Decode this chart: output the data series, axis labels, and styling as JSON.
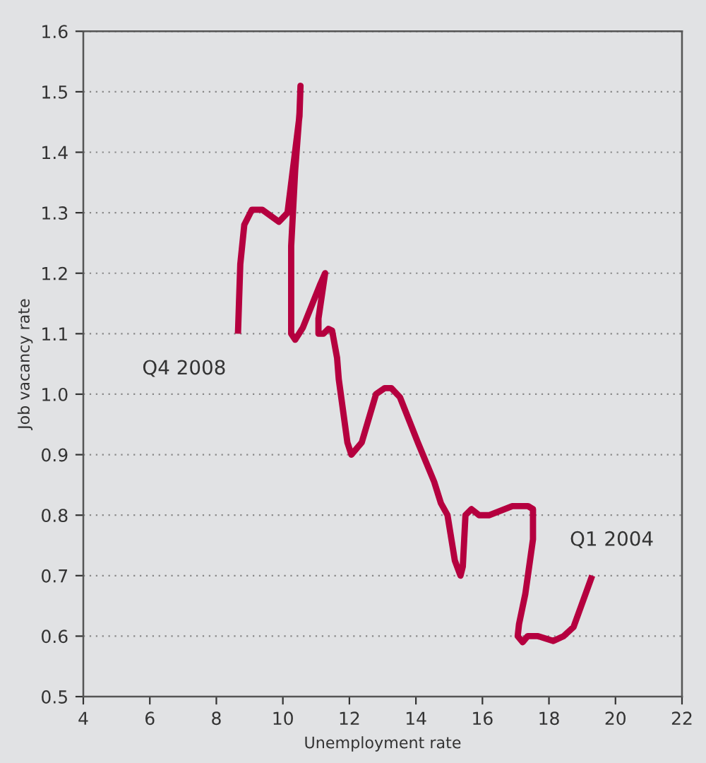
{
  "chart_data": {
    "type": "line",
    "xlabel": "Unemployment rate",
    "ylabel": "Job vacancy rate",
    "xlim": [
      4,
      22
    ],
    "xticks": [
      4,
      6,
      8,
      10,
      12,
      14,
      16,
      18,
      20,
      22
    ],
    "ylim": [
      0.5,
      1.6
    ],
    "yticks": [
      {
        "value": 0.5,
        "label": "0.5"
      },
      {
        "value": 0.6,
        "label": "0.6"
      },
      {
        "value": 0.7,
        "label": "0.7"
      },
      {
        "value": 0.8,
        "label": "0.8"
      },
      {
        "value": 0.9,
        "label": "0.9"
      },
      {
        "value": 1.0,
        "label": "1.0"
      },
      {
        "value": 1.1,
        "label": "1.1"
      },
      {
        "value": 1.2,
        "label": "1.2"
      },
      {
        "value": 1.3,
        "label": "1.3"
      },
      {
        "value": 1.4,
        "label": "1.4"
      },
      {
        "value": 1.5,
        "label": "1.5"
      },
      {
        "value": 1.6,
        "label": "1.6"
      }
    ],
    "grid": "y",
    "marker": "none",
    "line_style": "solid",
    "annotations": [
      {
        "text": "Q4 2008",
        "x": 8.65,
        "y": 1.1
      },
      {
        "text": "Q1 2004",
        "x": 19.3,
        "y": 0.7
      }
    ],
    "series": [
      {
        "color": "#b5003f",
        "x": [
          19.3,
          18.74,
          18.44,
          18.13,
          17.67,
          17.36,
          17.21,
          17.06,
          17.1,
          17.29,
          17.52,
          17.52,
          17.37,
          16.9,
          16.21,
          15.9,
          15.67,
          15.49,
          15.41,
          15.34,
          15.17,
          14.95,
          14.75,
          14.55,
          14.06,
          13.52,
          13.26,
          13.06,
          12.8,
          12.37,
          12.06,
          11.94,
          11.68,
          11.63,
          11.48,
          11.37,
          11.22,
          11.07,
          11.07,
          11.27,
          11.11,
          10.6,
          10.37,
          10.25,
          10.25,
          10.37,
          10.5,
          10.53,
          10.5,
          10.14,
          9.88,
          9.38,
          9.07,
          8.84,
          8.72,
          8.68,
          8.65
        ],
        "values": [
          0.7,
          0.615,
          0.6,
          0.592,
          0.6,
          0.6,
          0.59,
          0.6,
          0.62,
          0.67,
          0.76,
          0.81,
          0.815,
          0.815,
          0.8,
          0.8,
          0.81,
          0.8,
          0.715,
          0.7,
          0.725,
          0.8,
          0.82,
          0.855,
          0.92,
          0.995,
          1.01,
          1.01,
          1.0,
          0.92,
          0.9,
          0.92,
          1.025,
          1.06,
          1.105,
          1.108,
          1.1,
          1.1,
          1.125,
          1.2,
          1.18,
          1.11,
          1.09,
          1.1,
          1.245,
          1.37,
          1.465,
          1.51,
          1.46,
          1.3,
          1.285,
          1.305,
          1.305,
          1.28,
          1.215,
          1.15,
          1.1
        ]
      }
    ]
  }
}
